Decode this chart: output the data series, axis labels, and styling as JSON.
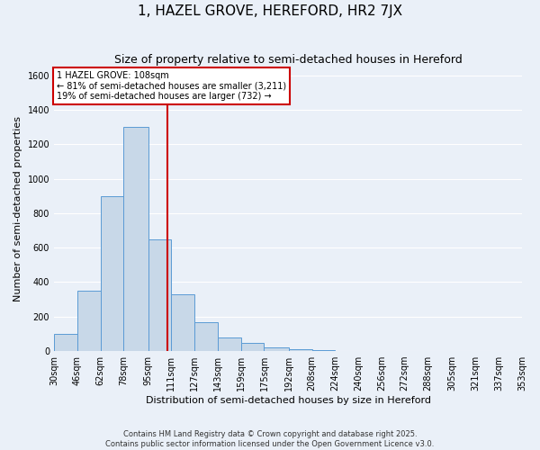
{
  "title": "1, HAZEL GROVE, HEREFORD, HR2 7JX",
  "subtitle": "Size of property relative to semi-detached houses in Hereford",
  "xlabel": "Distribution of semi-detached houses by size in Hereford",
  "ylabel": "Number of semi-detached properties",
  "bin_edges": [
    30,
    46,
    62,
    78,
    95,
    111,
    127,
    143,
    159,
    175,
    192,
    208,
    224,
    240,
    256,
    272,
    288,
    305,
    321,
    337,
    353
  ],
  "bar_heights": [
    100,
    350,
    900,
    1300,
    650,
    330,
    165,
    80,
    45,
    20,
    10,
    5,
    3,
    2,
    1,
    1,
    0,
    0,
    0,
    0
  ],
  "bar_color": "#c8d8e8",
  "bar_edge_color": "#5b9bd5",
  "property_size": 108,
  "vline_color": "#cc0000",
  "annotation_line1": "1 HAZEL GROVE: 108sqm",
  "annotation_line2": "← 81% of semi-detached houses are smaller (3,211)",
  "annotation_line3": "19% of semi-detached houses are larger (732) →",
  "annotation_box_color": "#ffffff",
  "annotation_box_edge_color": "#cc0000",
  "ylim": [
    0,
    1650
  ],
  "yticks": [
    0,
    200,
    400,
    600,
    800,
    1000,
    1200,
    1400,
    1600
  ],
  "footnote1": "Contains HM Land Registry data © Crown copyright and database right 2025.",
  "footnote2": "Contains public sector information licensed under the Open Government Licence v3.0.",
  "background_color": "#eaf0f8",
  "grid_color": "#ffffff",
  "title_fontsize": 11,
  "subtitle_fontsize": 9,
  "tick_label_fontsize": 7,
  "axis_label_fontsize": 8,
  "annotation_fontsize": 7,
  "footnote_fontsize": 6
}
